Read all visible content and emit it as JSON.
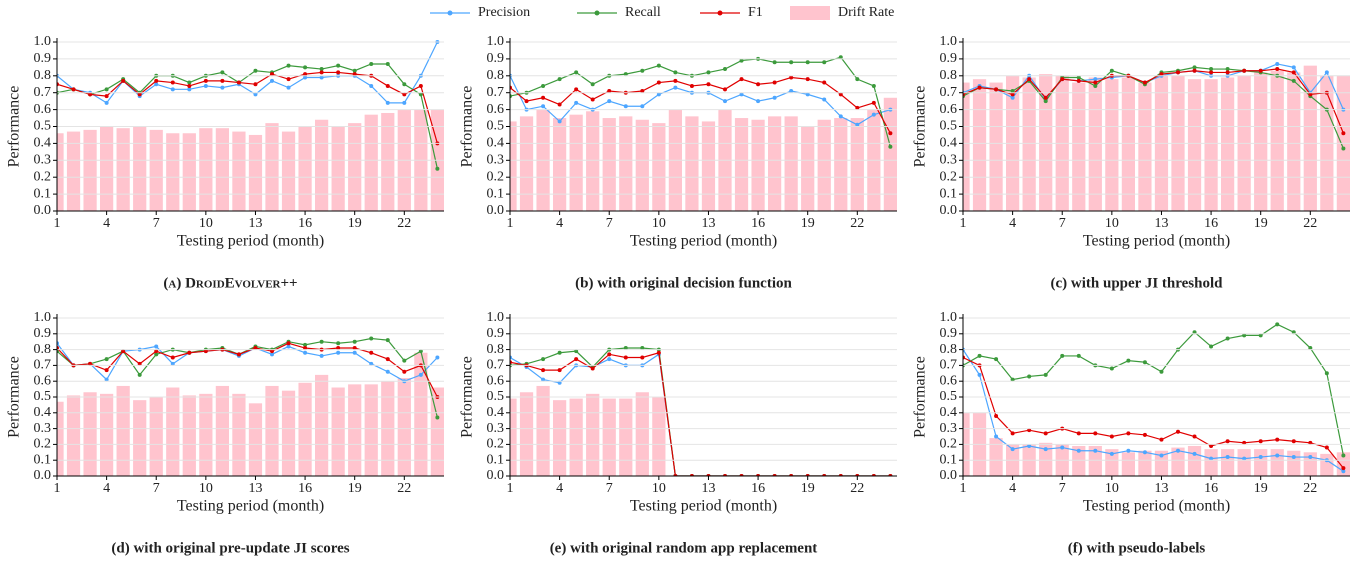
{
  "legend": "top",
  "chart_data": [
    {
      "type": "combo",
      "caption": "(a) DroidEvolver++",
      "xlabel": "Testing period (month)",
      "ylabel": "Performance",
      "x": [
        1,
        2,
        3,
        4,
        5,
        6,
        7,
        8,
        9,
        10,
        11,
        12,
        13,
        14,
        15,
        16,
        17,
        18,
        19,
        20,
        21,
        22,
        23,
        24
      ],
      "xlim": [
        1,
        24.4
      ],
      "xticks": [
        1,
        4,
        7,
        10,
        13,
        16,
        19,
        22
      ],
      "ylim": [
        0,
        1
      ],
      "yticks": [
        {
          "value": 0,
          "label": "0.0"
        },
        0.1,
        0.2,
        0.3,
        0.4,
        0.5,
        0.6,
        0.7,
        0.8,
        0.9,
        {
          "value": 1,
          "label": "1.0"
        }
      ],
      "grid": true,
      "series": [
        {
          "name": "Precision",
          "kind": "line",
          "color": "#4da6ff",
          "values": [
            0.8,
            0.72,
            0.7,
            0.64,
            0.77,
            0.68,
            0.75,
            0.72,
            0.72,
            0.74,
            0.73,
            0.75,
            0.69,
            0.77,
            0.73,
            0.79,
            0.79,
            0.8,
            0.8,
            0.74,
            0.64,
            0.64,
            0.8,
            1.0
          ]
        },
        {
          "name": "Recall",
          "kind": "line",
          "color": "#3c9a3c",
          "values": [
            0.7,
            0.72,
            0.69,
            0.72,
            0.78,
            0.7,
            0.8,
            0.8,
            0.76,
            0.8,
            0.82,
            0.76,
            0.83,
            0.82,
            0.86,
            0.85,
            0.84,
            0.86,
            0.83,
            0.87,
            0.87,
            0.75,
            0.69,
            0.25
          ]
        },
        {
          "name": "F1",
          "kind": "line",
          "color": "#e00000",
          "values": [
            0.75,
            0.72,
            0.69,
            0.68,
            0.77,
            0.69,
            0.77,
            0.76,
            0.74,
            0.77,
            0.77,
            0.76,
            0.75,
            0.81,
            0.78,
            0.81,
            0.82,
            0.82,
            0.81,
            0.8,
            0.74,
            0.69,
            0.74,
            0.4
          ]
        },
        {
          "name": "Drift Rate",
          "kind": "bar",
          "color": "#ffc4ce",
          "values": [
            0.46,
            0.47,
            0.48,
            0.5,
            0.49,
            0.5,
            0.48,
            0.46,
            0.46,
            0.49,
            0.49,
            0.47,
            0.45,
            0.52,
            0.47,
            0.5,
            0.54,
            0.5,
            0.52,
            0.57,
            0.58,
            0.6,
            0.6,
            0.6
          ]
        }
      ]
    },
    {
      "type": "combo",
      "caption": "(b) with original decision function",
      "xlabel": "Testing period (month)",
      "ylabel": "Performance",
      "x": [
        1,
        2,
        3,
        4,
        5,
        6,
        7,
        8,
        9,
        10,
        11,
        12,
        13,
        14,
        15,
        16,
        17,
        18,
        19,
        20,
        21,
        22,
        23,
        24
      ],
      "xlim": [
        1,
        24.4
      ],
      "xticks": [
        1,
        4,
        7,
        10,
        13,
        16,
        19,
        22
      ],
      "ylim": [
        0,
        1
      ],
      "yticks": [
        {
          "value": 0,
          "label": "0.0"
        },
        0.1,
        0.2,
        0.3,
        0.4,
        0.5,
        0.6,
        0.7,
        0.8,
        0.9,
        {
          "value": 1,
          "label": "1.0"
        }
      ],
      "grid": true,
      "series": [
        {
          "name": "Precision",
          "kind": "line",
          "color": "#4da6ff",
          "values": [
            0.8,
            0.6,
            0.62,
            0.53,
            0.64,
            0.6,
            0.65,
            0.62,
            0.62,
            0.69,
            0.73,
            0.7,
            0.7,
            0.65,
            0.69,
            0.65,
            0.67,
            0.71,
            0.69,
            0.66,
            0.56,
            0.51,
            0.57,
            0.6
          ]
        },
        {
          "name": "Recall",
          "kind": "line",
          "color": "#3c9a3c",
          "values": [
            0.68,
            0.7,
            0.74,
            0.78,
            0.82,
            0.75,
            0.8,
            0.81,
            0.83,
            0.86,
            0.82,
            0.8,
            0.82,
            0.84,
            0.89,
            0.9,
            0.88,
            0.88,
            0.88,
            0.88,
            0.91,
            0.78,
            0.74,
            0.38
          ]
        },
        {
          "name": "F1",
          "kind": "line",
          "color": "#e00000",
          "values": [
            0.73,
            0.65,
            0.67,
            0.63,
            0.72,
            0.66,
            0.71,
            0.7,
            0.71,
            0.76,
            0.77,
            0.74,
            0.75,
            0.72,
            0.78,
            0.75,
            0.76,
            0.79,
            0.78,
            0.76,
            0.69,
            0.61,
            0.64,
            0.46
          ]
        },
        {
          "name": "Drift Rate",
          "kind": "bar",
          "color": "#ffc4ce",
          "values": [
            0.53,
            0.56,
            0.6,
            0.55,
            0.57,
            0.59,
            0.55,
            0.56,
            0.54,
            0.52,
            0.6,
            0.56,
            0.53,
            0.6,
            0.55,
            0.54,
            0.56,
            0.56,
            0.5,
            0.54,
            0.55,
            0.55,
            0.6,
            0.67
          ]
        }
      ]
    },
    {
      "type": "combo",
      "caption": "(c) with upper JI threshold",
      "xlabel": "Testing period (month)",
      "ylabel": "Performance",
      "x": [
        1,
        2,
        3,
        4,
        5,
        6,
        7,
        8,
        9,
        10,
        11,
        12,
        13,
        14,
        15,
        16,
        17,
        18,
        19,
        20,
        21,
        22,
        23,
        24
      ],
      "xlim": [
        1,
        24.4
      ],
      "xticks": [
        1,
        4,
        7,
        10,
        13,
        16,
        19,
        22
      ],
      "ylim": [
        0,
        1
      ],
      "yticks": [
        {
          "value": 0,
          "label": "0.0"
        },
        0.1,
        0.2,
        0.3,
        0.4,
        0.5,
        0.6,
        0.7,
        0.8,
        0.9,
        {
          "value": 1,
          "label": "1.0"
        }
      ],
      "grid": true,
      "series": [
        {
          "name": "Precision",
          "kind": "line",
          "color": "#4da6ff",
          "values": [
            0.7,
            0.74,
            0.72,
            0.67,
            0.8,
            0.66,
            0.78,
            0.77,
            0.78,
            0.79,
            0.8,
            0.76,
            0.8,
            0.82,
            0.83,
            0.8,
            0.8,
            0.83,
            0.83,
            0.87,
            0.85,
            0.7,
            0.82,
            0.6
          ]
        },
        {
          "name": "Recall",
          "kind": "line",
          "color": "#3c9a3c",
          "values": [
            0.68,
            0.73,
            0.72,
            0.71,
            0.77,
            0.65,
            0.79,
            0.79,
            0.74,
            0.83,
            0.8,
            0.75,
            0.82,
            0.83,
            0.85,
            0.84,
            0.84,
            0.83,
            0.82,
            0.8,
            0.77,
            0.68,
            0.6,
            0.37
          ]
        },
        {
          "name": "F1",
          "kind": "line",
          "color": "#e00000",
          "values": [
            0.69,
            0.73,
            0.72,
            0.69,
            0.78,
            0.67,
            0.78,
            0.77,
            0.76,
            0.8,
            0.8,
            0.76,
            0.81,
            0.82,
            0.83,
            0.82,
            0.82,
            0.83,
            0.83,
            0.84,
            0.82,
            0.69,
            0.7,
            0.46
          ]
        },
        {
          "name": "Drift Rate",
          "kind": "bar",
          "color": "#ffc4ce",
          "values": [
            0.76,
            0.78,
            0.76,
            0.8,
            0.79,
            0.81,
            0.8,
            0.76,
            0.79,
            0.78,
            0.79,
            0.76,
            0.8,
            0.8,
            0.78,
            0.78,
            0.79,
            0.8,
            0.82,
            0.83,
            0.82,
            0.86,
            0.8,
            0.8
          ]
        }
      ]
    },
    {
      "type": "combo",
      "caption": "(d) with original pre-update JI scores",
      "xlabel": "Testing period (month)",
      "ylabel": "Performance",
      "x": [
        1,
        2,
        3,
        4,
        5,
        6,
        7,
        8,
        9,
        10,
        11,
        12,
        13,
        14,
        15,
        16,
        17,
        18,
        19,
        20,
        21,
        22,
        23,
        24
      ],
      "xlim": [
        1,
        24.4
      ],
      "xticks": [
        1,
        4,
        7,
        10,
        13,
        16,
        19,
        22
      ],
      "ylim": [
        0,
        1
      ],
      "yticks": [
        {
          "value": 0,
          "label": "0.0"
        },
        0.1,
        0.2,
        0.3,
        0.4,
        0.5,
        0.6,
        0.7,
        0.8,
        0.9,
        {
          "value": 1,
          "label": "1.0"
        }
      ],
      "grid": true,
      "series": [
        {
          "name": "Precision",
          "kind": "line",
          "color": "#4da6ff",
          "values": [
            0.84,
            0.7,
            0.71,
            0.61,
            0.79,
            0.8,
            0.82,
            0.71,
            0.78,
            0.79,
            0.8,
            0.76,
            0.81,
            0.77,
            0.82,
            0.78,
            0.76,
            0.78,
            0.78,
            0.71,
            0.66,
            0.6,
            0.64,
            0.75
          ]
        },
        {
          "name": "Recall",
          "kind": "line",
          "color": "#3c9a3c",
          "values": [
            0.79,
            0.7,
            0.71,
            0.74,
            0.79,
            0.64,
            0.77,
            0.8,
            0.78,
            0.8,
            0.81,
            0.77,
            0.82,
            0.8,
            0.85,
            0.83,
            0.85,
            0.84,
            0.85,
            0.87,
            0.86,
            0.73,
            0.79,
            0.37
          ]
        },
        {
          "name": "F1",
          "kind": "line",
          "color": "#e00000",
          "values": [
            0.81,
            0.7,
            0.71,
            0.67,
            0.79,
            0.71,
            0.79,
            0.75,
            0.78,
            0.79,
            0.8,
            0.77,
            0.81,
            0.79,
            0.84,
            0.81,
            0.8,
            0.81,
            0.81,
            0.78,
            0.74,
            0.66,
            0.7,
            0.5
          ]
        },
        {
          "name": "Drift Rate",
          "kind": "bar",
          "color": "#ffc4ce",
          "values": [
            0.47,
            0.51,
            0.53,
            0.52,
            0.57,
            0.48,
            0.5,
            0.56,
            0.51,
            0.52,
            0.57,
            0.52,
            0.46,
            0.57,
            0.54,
            0.59,
            0.64,
            0.56,
            0.58,
            0.58,
            0.6,
            0.62,
            0.78,
            0.56
          ]
        }
      ]
    },
    {
      "type": "combo",
      "caption": "(e) with original random app replacement",
      "xlabel": "Testing period (month)",
      "ylabel": "Performance",
      "x": [
        1,
        2,
        3,
        4,
        5,
        6,
        7,
        8,
        9,
        10,
        11,
        12,
        13,
        14,
        15,
        16,
        17,
        18,
        19,
        20,
        21,
        22,
        23,
        24
      ],
      "xlim": [
        1,
        24.4
      ],
      "xticks": [
        1,
        4,
        7,
        10,
        13,
        16,
        19,
        22
      ],
      "ylim": [
        0,
        1
      ],
      "yticks": [
        {
          "value": 0,
          "label": "0.0"
        },
        0.1,
        0.2,
        0.3,
        0.4,
        0.5,
        0.6,
        0.7,
        0.8,
        0.9,
        {
          "value": 1,
          "label": "1.0"
        }
      ],
      "grid": true,
      "series": [
        {
          "name": "Precision",
          "kind": "line",
          "color": "#4da6ff",
          "values": [
            0.75,
            0.69,
            0.61,
            0.59,
            0.7,
            0.69,
            0.74,
            0.7,
            0.7,
            0.77,
            0,
            0,
            0,
            0,
            0,
            0,
            0,
            0,
            0,
            0,
            0,
            0,
            0,
            0
          ]
        },
        {
          "name": "Recall",
          "kind": "line",
          "color": "#3c9a3c",
          "values": [
            0.7,
            0.71,
            0.74,
            0.78,
            0.79,
            0.69,
            0.8,
            0.81,
            0.81,
            0.8,
            0,
            0,
            0,
            0,
            0,
            0,
            0,
            0,
            0,
            0,
            0,
            0,
            0,
            0
          ]
        },
        {
          "name": "F1",
          "kind": "line",
          "color": "#e00000",
          "values": [
            0.72,
            0.7,
            0.67,
            0.67,
            0.74,
            0.68,
            0.77,
            0.75,
            0.75,
            0.78,
            0,
            0,
            0,
            0,
            0,
            0,
            0,
            0,
            0,
            0,
            0,
            0,
            0,
            0
          ]
        },
        {
          "name": "Drift Rate",
          "kind": "bar",
          "color": "#ffc4ce",
          "values": [
            0.49,
            0.53,
            0.57,
            0.48,
            0.49,
            0.52,
            0.49,
            0.49,
            0.53,
            0.5,
            null,
            null,
            null,
            null,
            null,
            null,
            null,
            null,
            null,
            null,
            null,
            null,
            null,
            null
          ]
        }
      ]
    },
    {
      "type": "combo",
      "caption": "(f) with pseudo-labels",
      "xlabel": "Testing period (month)",
      "ylabel": "Performance",
      "x": [
        1,
        2,
        3,
        4,
        5,
        6,
        7,
        8,
        9,
        10,
        11,
        12,
        13,
        14,
        15,
        16,
        17,
        18,
        19,
        20,
        21,
        22,
        23,
        24
      ],
      "xlim": [
        1,
        24.4
      ],
      "xticks": [
        1,
        4,
        7,
        10,
        13,
        16,
        19,
        22
      ],
      "ylim": [
        0,
        1
      ],
      "yticks": [
        {
          "value": 0,
          "label": "0.0"
        },
        0.1,
        0.2,
        0.3,
        0.4,
        0.5,
        0.6,
        0.7,
        0.8,
        0.9,
        {
          "value": 1,
          "label": "1.0"
        }
      ],
      "grid": true,
      "series": [
        {
          "name": "Precision",
          "kind": "line",
          "color": "#4da6ff",
          "values": [
            0.8,
            0.64,
            0.25,
            0.17,
            0.19,
            0.17,
            0.18,
            0.16,
            0.16,
            0.14,
            0.16,
            0.15,
            0.13,
            0.16,
            0.14,
            0.11,
            0.12,
            0.11,
            0.12,
            0.13,
            0.12,
            0.12,
            0.1,
            0.03
          ]
        },
        {
          "name": "Recall",
          "kind": "line",
          "color": "#3c9a3c",
          "values": [
            0.7,
            0.76,
            0.74,
            0.61,
            0.63,
            0.64,
            0.76,
            0.76,
            0.7,
            0.68,
            0.73,
            0.72,
            0.66,
            0.8,
            0.91,
            0.82,
            0.87,
            0.89,
            0.89,
            0.96,
            0.91,
            0.81,
            0.65,
            0.13
          ]
        },
        {
          "name": "F1",
          "kind": "line",
          "color": "#e00000",
          "values": [
            0.75,
            0.7,
            0.38,
            0.27,
            0.29,
            0.27,
            0.3,
            0.27,
            0.27,
            0.25,
            0.27,
            0.26,
            0.23,
            0.28,
            0.25,
            0.19,
            0.22,
            0.21,
            0.22,
            0.23,
            0.22,
            0.21,
            0.18,
            0.05
          ]
        },
        {
          "name": "Drift Rate",
          "kind": "bar",
          "color": "#ffc4ce",
          "values": [
            0.4,
            0.4,
            0.24,
            0.2,
            0.2,
            0.21,
            0.2,
            0.19,
            0.19,
            0.17,
            0.15,
            0.16,
            0.16,
            0.18,
            0.19,
            0.17,
            0.17,
            0.17,
            0.17,
            0.17,
            0.16,
            0.15,
            0.14,
            0.15
          ]
        }
      ]
    }
  ]
}
